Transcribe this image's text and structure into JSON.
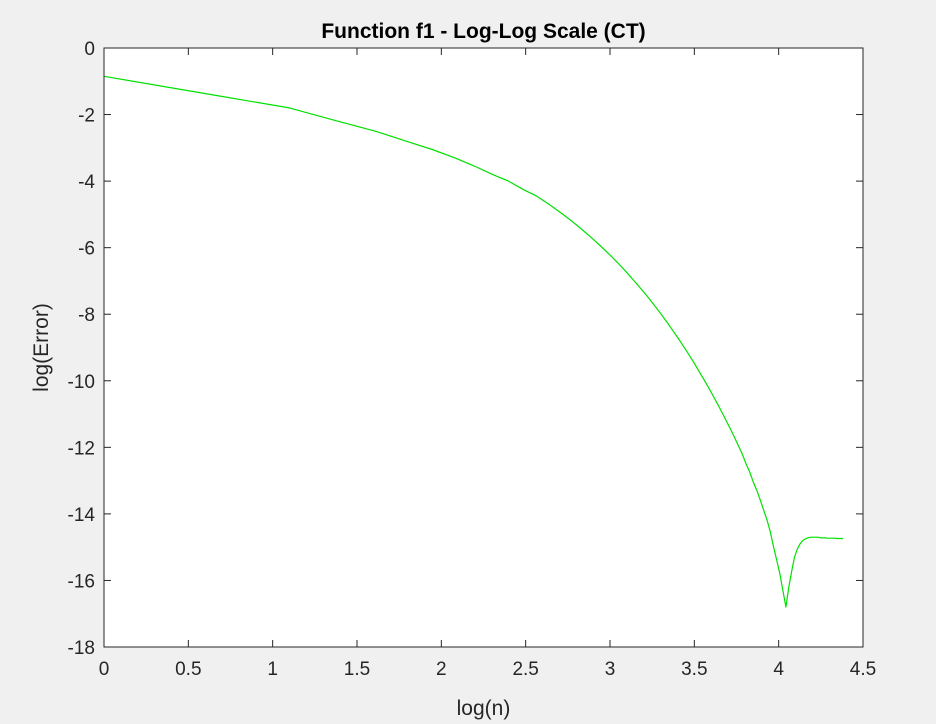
{
  "chart_data": {
    "type": "line",
    "title": "Function f1 - Log-Log Scale (CT)",
    "xlabel": "log(n)",
    "ylabel": "log(Error)",
    "xlim": [
      0,
      4.5
    ],
    "ylim": [
      -18,
      0
    ],
    "xticks": [
      0,
      0.5,
      1,
      1.5,
      2,
      2.5,
      3,
      3.5,
      4,
      4.5
    ],
    "xtick_labels": [
      "0",
      "0.5",
      "1",
      "1.5",
      "2",
      "2.5",
      "3",
      "3.5",
      "4",
      "4.5"
    ],
    "yticks": [
      0,
      -2,
      -4,
      -6,
      -8,
      -10,
      -12,
      -14,
      -16,
      -18
    ],
    "ytick_labels": [
      "0",
      "-2",
      "-4",
      "-6",
      "-8",
      "-10",
      "-12",
      "-14",
      "-16",
      "-18"
    ],
    "grid": false,
    "series": [
      {
        "color": "#00e000",
        "x": [
          0,
          0.693,
          1.099,
          1.386,
          1.609,
          1.792,
          1.946,
          2.079,
          2.197,
          2.303,
          2.398,
          2.485,
          2.565,
          2.639,
          2.708,
          2.773,
          2.833,
          2.89,
          2.944,
          2.996,
          3.045,
          3.091,
          3.135,
          3.178,
          3.219,
          3.258,
          3.296,
          3.332,
          3.367,
          3.401,
          3.434,
          3.466,
          3.497,
          3.526,
          3.555,
          3.584,
          3.611,
          3.638,
          3.664,
          3.689,
          3.714,
          3.738,
          3.761,
          3.784,
          3.807,
          3.829,
          3.85,
          3.871,
          3.892,
          3.912,
          3.932,
          3.951,
          3.97,
          3.989,
          4.007,
          4.025,
          4.043,
          4.06,
          4.078,
          4.094,
          4.111,
          4.127,
          4.143,
          4.159,
          4.174,
          4.19,
          4.205,
          4.22,
          4.234,
          4.248,
          4.263,
          4.277,
          4.29,
          4.304,
          4.317,
          4.331,
          4.344,
          4.357,
          4.369,
          4.382
        ],
        "y": [
          -0.85,
          -1.45,
          -1.8,
          -2.2,
          -2.5,
          -2.8,
          -3.05,
          -3.3,
          -3.55,
          -3.8,
          -4.0,
          -4.25,
          -4.45,
          -4.7,
          -4.95,
          -5.2,
          -5.45,
          -5.7,
          -5.95,
          -6.2,
          -6.45,
          -6.7,
          -6.95,
          -7.2,
          -7.45,
          -7.7,
          -7.95,
          -8.2,
          -8.45,
          -8.7,
          -8.95,
          -9.2,
          -9.45,
          -9.7,
          -9.95,
          -10.2,
          -10.45,
          -10.7,
          -10.95,
          -11.2,
          -11.45,
          -11.7,
          -11.95,
          -12.2,
          -12.5,
          -12.75,
          -13.05,
          -13.3,
          -13.6,
          -13.9,
          -14.2,
          -14.55,
          -15.0,
          -15.4,
          -15.8,
          -16.3,
          -16.8,
          -16.2,
          -15.7,
          -15.3,
          -15.05,
          -14.9,
          -14.8,
          -14.75,
          -14.72,
          -14.7,
          -14.7,
          -14.7,
          -14.7,
          -14.72,
          -14.72,
          -14.72,
          -14.73,
          -14.73,
          -14.73,
          -14.73,
          -14.74,
          -14.74,
          -14.74,
          -14.74
        ]
      }
    ]
  }
}
